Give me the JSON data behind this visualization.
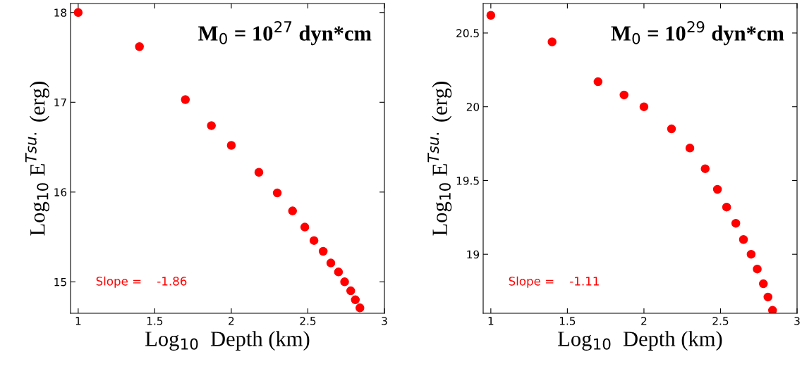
{
  "chart_data": [
    {
      "type": "scatter",
      "xlabel": "Log$_{10}$  Depth (km)",
      "ylabel": "Log$_{10}$ E$^{Tsu.}$ (erg)",
      "annotations": [
        "M$_{0}$ = 10$^{27}$ dyn*cm",
        "Slope =    -1.86"
      ],
      "x": [
        1,
        1.4,
        1.7,
        1.87,
        2.0,
        2.18,
        2.3,
        2.4,
        2.48,
        2.54,
        2.6,
        2.65,
        2.7,
        2.74,
        2.78,
        2.81,
        2.84
      ],
      "series": [
        {
          "color": "#ff0000",
          "values": [
            18.0,
            17.62,
            17.03,
            16.74,
            16.52,
            16.22,
            15.99,
            15.79,
            15.61,
            15.46,
            15.34,
            15.21,
            15.11,
            15.0,
            14.9,
            14.8,
            14.71
          ]
        }
      ],
      "xlim": [
        0.95,
        3.0
      ],
      "ylim": [
        14.65,
        18.1
      ],
      "xticks": [
        1,
        1.5,
        2,
        2.5,
        3
      ],
      "yticks": [
        15,
        16,
        17,
        18
      ],
      "marker": "circle",
      "grid": false
    },
    {
      "type": "scatter",
      "xlabel": "Log$_{10}$  Depth (km)",
      "ylabel": "Log$_{10}$ E$^{Tsu.}$ (erg)",
      "annotations": [
        "M$_{0}$ = 10$^{29}$ dyn*cm",
        "Slope =    -1.11"
      ],
      "x": [
        1,
        1.4,
        1.7,
        1.87,
        2.0,
        2.18,
        2.3,
        2.4,
        2.48,
        2.54,
        2.6,
        2.65,
        2.7,
        2.74,
        2.78,
        2.81,
        2.84
      ],
      "series": [
        {
          "color": "#ff0000",
          "values": [
            20.62,
            20.44,
            20.17,
            20.08,
            20.0,
            19.85,
            19.72,
            19.58,
            19.44,
            19.32,
            19.21,
            19.1,
            19.0,
            18.9,
            18.8,
            18.71,
            18.62
          ]
        }
      ],
      "xlim": [
        0.95,
        3.0
      ],
      "ylim": [
        18.6,
        20.7
      ],
      "xticks": [
        1,
        1.5,
        2,
        2.5,
        3
      ],
      "yticks": [
        19,
        19.5,
        20,
        20.5
      ],
      "marker": "circle",
      "grid": false
    }
  ]
}
